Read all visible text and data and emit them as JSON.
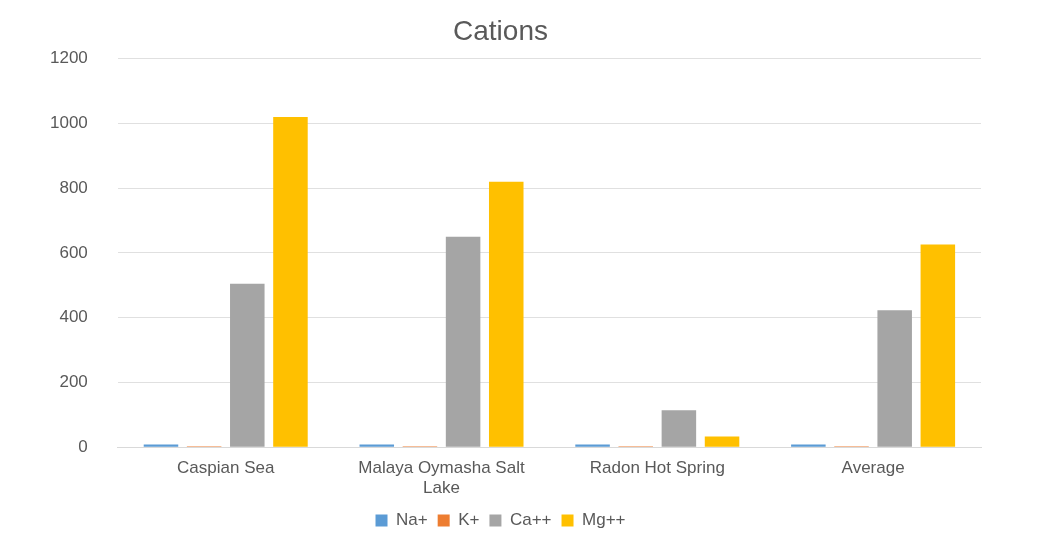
{
  "chart_data": {
    "type": "bar",
    "title": "Cations",
    "categories": [
      "Caspian Sea",
      "Malaya Oymasha Salt Lake",
      "Radon Hot Spring",
      "Average"
    ],
    "series": [
      {
        "name": "Na+",
        "color": "#5b9bd5",
        "values": [
          8,
          8,
          8,
          8
        ]
      },
      {
        "name": "K+",
        "color": "#ed7d31",
        "values": [
          3,
          3,
          3,
          3
        ]
      },
      {
        "name": "Ca++",
        "color": "#a5a5a5",
        "values": [
          505,
          650,
          114,
          423
        ]
      },
      {
        "name": "Mg++",
        "color": "#ffc000",
        "values": [
          1020,
          820,
          33,
          626
        ]
      }
    ],
    "ylim": [
      0,
      1200
    ],
    "yticks": [
      0,
      200,
      400,
      600,
      800,
      1000,
      1200
    ],
    "grid": "y",
    "legend": "bottom"
  }
}
